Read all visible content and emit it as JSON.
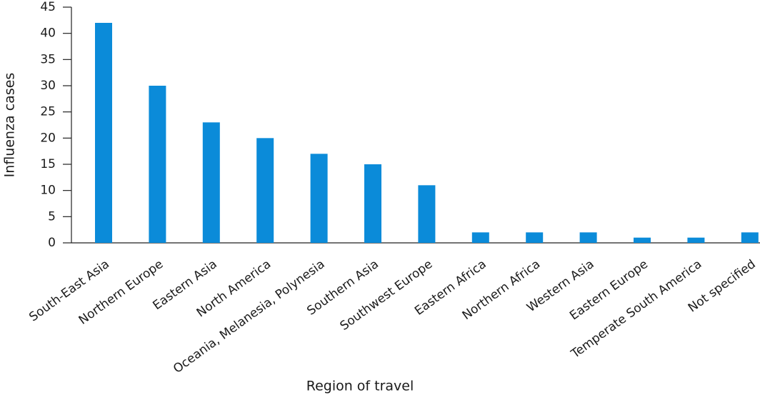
{
  "chart_data": {
    "type": "bar",
    "x_label": "Region of travel",
    "y_label": "Influenza cases",
    "categories": [
      "South-East Asia",
      "Northern Europe",
      "Eastern Asia",
      "North America",
      "Oceania, Melanesia, Polynesia",
      "Southern Asia",
      "Southwest Europe",
      "Eastern Africa",
      "Northern Africa",
      "Western Asia",
      "Eastern Europe",
      "Temperate South America",
      "Not specified"
    ],
    "values": [
      42,
      30,
      23,
      20,
      17,
      15,
      11,
      2,
      2,
      2,
      1,
      1,
      2
    ],
    "color": "#0b8bd9",
    "ylim": [
      0,
      45
    ],
    "yticks": [
      0,
      5,
      10,
      15,
      20,
      25,
      30,
      35,
      40,
      45
    ],
    "grid": false
  }
}
